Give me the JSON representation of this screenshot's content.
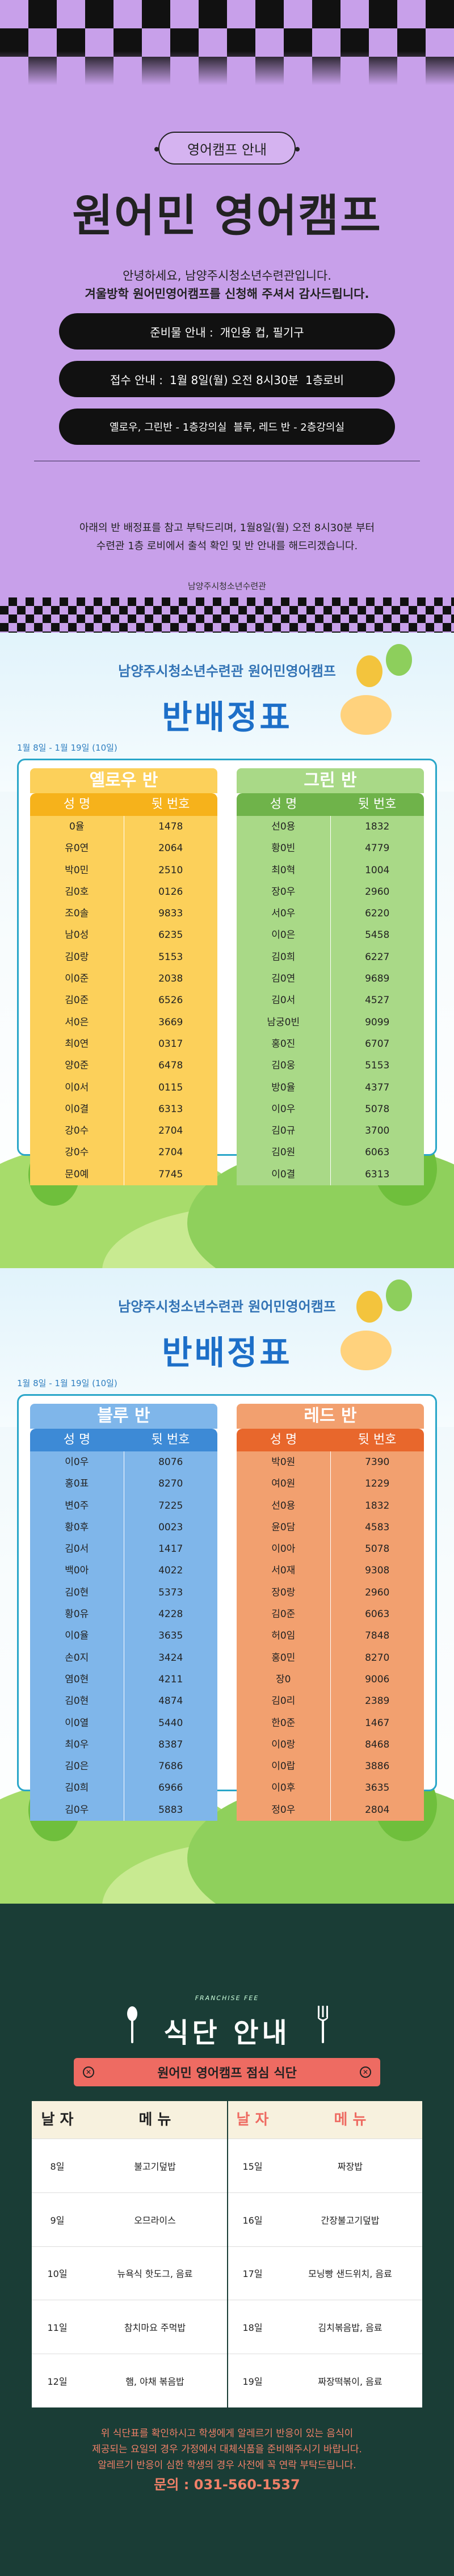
{
  "s1": {
    "pill": "영어캠프 안내",
    "title": "원어민 영어캠프",
    "intro1": "안녕하세요, 남양주시청소년수련관입니다.",
    "intro2": "겨울방학 원어민영어캠프를 신청해 주셔서 감사드립니다.",
    "b1": [
      "준비물 안내 :",
      "개인용 컵, 필기구"
    ],
    "b2": [
      "접수 안내 :",
      "1월 8일(월) 오전 8시30분",
      "1층로비"
    ],
    "b3": [
      "옐로우, 그린반 - 1층강의실",
      "블루, 레드 반 - 2층강의실"
    ],
    "note1": "아래의 반 배정표를 참고 부탁드리며, 1월8일(월) 오전 8시30분 부터",
    "note2": "수련관 1층 로비에서 출석 확인 및 반 안내를 해드리겠습니다.",
    "org": "남양주시청소년수련관"
  },
  "s2": {
    "org": "남양주시청소년수련관 원어민영어캠프",
    "title": "반배정표",
    "date": "1월 8일 - 1월 19일 (10일)",
    "left": {
      "group": "옐로우 반",
      "h1": "성 명",
      "h2": "뒷 번호",
      "color": "#f6b21b",
      "light": "#fcd05a",
      "rows": [
        [
          "0율",
          "1478"
        ],
        [
          "유0연",
          "2064"
        ],
        [
          "박0민",
          "2510"
        ],
        [
          "김0호",
          "0126"
        ],
        [
          "조0솔",
          "9833"
        ],
        [
          "남0성",
          "6235"
        ],
        [
          "김0랑",
          "5153"
        ],
        [
          "이0준",
          "2038"
        ],
        [
          "김0준",
          "6526"
        ],
        [
          "서0은",
          "3669"
        ],
        [
          "최0연",
          "0317"
        ],
        [
          "양0준",
          "6478"
        ],
        [
          "이0서",
          "0115"
        ],
        [
          "이0결",
          "6313"
        ],
        [
          "강0수",
          "2704"
        ],
        [
          "강0수",
          "2704"
        ],
        [
          "문0예",
          "7745"
        ]
      ]
    },
    "right": {
      "group": "그린 반",
      "h1": "성 명",
      "h2": "뒷 번호",
      "color": "#6fb34a",
      "light": "#a9d987",
      "rows": [
        [
          "선0용",
          "1832"
        ],
        [
          "황0빈",
          "4779"
        ],
        [
          "최0혁",
          "1004"
        ],
        [
          "장0우",
          "2960"
        ],
        [
          "서0우",
          "6220"
        ],
        [
          "이0은",
          "5458"
        ],
        [
          "김0희",
          "6227"
        ],
        [
          "김0연",
          "9689"
        ],
        [
          "김0서",
          "4527"
        ],
        [
          "남궁0빈",
          "9099"
        ],
        [
          "홍0진",
          "6707"
        ],
        [
          "김0웅",
          "5153"
        ],
        [
          "방0율",
          "4377"
        ],
        [
          "이0우",
          "5078"
        ],
        [
          "김0규",
          "3700"
        ],
        [
          "김0원",
          "6063"
        ],
        [
          "이0결",
          "6313"
        ]
      ]
    }
  },
  "s3": {
    "org": "남양주시청소년수련관 원어민영어캠프",
    "title": "반배정표",
    "date": "1월 8일 - 1월 19일 (10일)",
    "left": {
      "group": "블루 반",
      "h1": "성 명",
      "h2": "뒷 번호",
      "color": "#3d8ad6",
      "light": "#7fb6ea",
      "rows": [
        [
          "이0우",
          "8076"
        ],
        [
          "홍0표",
          "8270"
        ],
        [
          "변0주",
          "7225"
        ],
        [
          "황0후",
          "0023"
        ],
        [
          "김0서",
          "1417"
        ],
        [
          "백0아",
          "4022"
        ],
        [
          "김0현",
          "5373"
        ],
        [
          "황0유",
          "4228"
        ],
        [
          "이0율",
          "3635"
        ],
        [
          "손0지",
          "3424"
        ],
        [
          "염0현",
          "4211"
        ],
        [
          "김0현",
          "4874"
        ],
        [
          "이0열",
          "5440"
        ],
        [
          "최0우",
          "8387"
        ],
        [
          "김0은",
          "7686"
        ],
        [
          "김0희",
          "6966"
        ],
        [
          "김0우",
          "5883"
        ]
      ]
    },
    "right": {
      "group": "레드 반",
      "h1": "성 명",
      "h2": "뒷 번호",
      "color": "#e8672c",
      "light": "#f2a06f",
      "rows": [
        [
          "박0원",
          "7390"
        ],
        [
          "여0원",
          "1229"
        ],
        [
          "선0용",
          "1832"
        ],
        [
          "윤0담",
          "4583"
        ],
        [
          "이0아",
          "5078"
        ],
        [
          "서0재",
          "9308"
        ],
        [
          "장0랑",
          "2960"
        ],
        [
          "김0준",
          "6063"
        ],
        [
          "허0임",
          "7848"
        ],
        [
          "홍0민",
          "8270"
        ],
        [
          "장0",
          "9006"
        ],
        [
          "김0리",
          "2389"
        ],
        [
          "한0준",
          "1467"
        ],
        [
          "이0랑",
          "8468"
        ],
        [
          "이0랍",
          "3886"
        ],
        [
          "이0후",
          "3635"
        ],
        [
          "정0우",
          "2804"
        ]
      ]
    }
  },
  "s4": {
    "franchise": "FRANCHISE FEE",
    "title": "식단 안내",
    "bar": "원어민 영어캠프 점심 식단",
    "heads": [
      "날 자",
      "메 뉴",
      "날 자",
      "메 뉴"
    ],
    "rows": [
      [
        "8일",
        "불고기덮밥",
        "15일",
        "짜장밥"
      ],
      [
        "9일",
        "오므라이스",
        "16일",
        "간장불고기덮밥"
      ],
      [
        "10일",
        "뉴욕식 핫도그, 음료",
        "17일",
        "모닝빵 샌드위치, 음료"
      ],
      [
        "11일",
        "참치마요 주먹밥",
        "18일",
        "김치볶음밥, 음료"
      ],
      [
        "12일",
        "햄, 야채 볶음밥",
        "19일",
        "짜장떡볶이, 음료"
      ]
    ],
    "info1": "위 식단표를 확인하시고 학생에게 알레르기 반응이 있는 음식이",
    "info2": "제공되는 요일의 경우 가정에서 대체식품을 준비해주시기 바랍니다.",
    "info3": "알레르기 반응이 심한 학생의 경우 사전에 꼭 연락 부탁드립니다.",
    "phone": "문의 : 031-560-1537"
  }
}
